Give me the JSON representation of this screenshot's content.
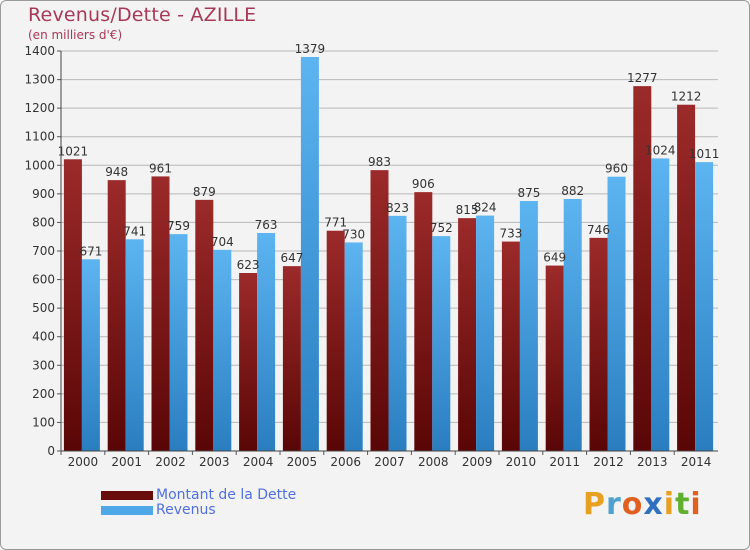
{
  "title": "Revenus/Dette - AZILLE",
  "subtitle": "(en milliers d'€)",
  "colors": {
    "dette": "#8b1a1a",
    "revenus": "#4ea8e8"
  },
  "legend": [
    {
      "label": "Montant de la Dette",
      "color": "#8b1a1a"
    },
    {
      "label": "Revenus",
      "color": "#4ea8e8"
    }
  ],
  "logo": {
    "letters": [
      "P",
      "r",
      "o",
      "x",
      "i",
      "t",
      "i"
    ],
    "colors": [
      "#e8a020",
      "#50a0d0",
      "#e06020",
      "#3070c0",
      "#e8a020",
      "#60b030",
      "#e06020"
    ]
  },
  "chart_data": {
    "type": "bar",
    "title": "Revenus/Dette - AZILLE",
    "ylabel": "",
    "xlabel": "",
    "ylim": [
      0,
      1400
    ],
    "yticks": [
      0,
      100,
      200,
      300,
      400,
      500,
      600,
      700,
      800,
      900,
      1000,
      1100,
      1200,
      1300,
      1400
    ],
    "grid": true,
    "legend_position": "bottom-left",
    "categories": [
      "2000",
      "2001",
      "2002",
      "2003",
      "2004",
      "2005",
      "2006",
      "2007",
      "2008",
      "2009",
      "2010",
      "2011",
      "2012",
      "2013",
      "2014"
    ],
    "series": [
      {
        "name": "Montant de la Dette",
        "values": [
          1021,
          948,
          961,
          879,
          623,
          647,
          771,
          983,
          906,
          815,
          733,
          649,
          746,
          1277,
          1212
        ]
      },
      {
        "name": "Revenus",
        "values": [
          671,
          741,
          759,
          704,
          763,
          1379,
          730,
          823,
          752,
          824,
          875,
          882,
          960,
          1024,
          1011
        ]
      }
    ]
  }
}
